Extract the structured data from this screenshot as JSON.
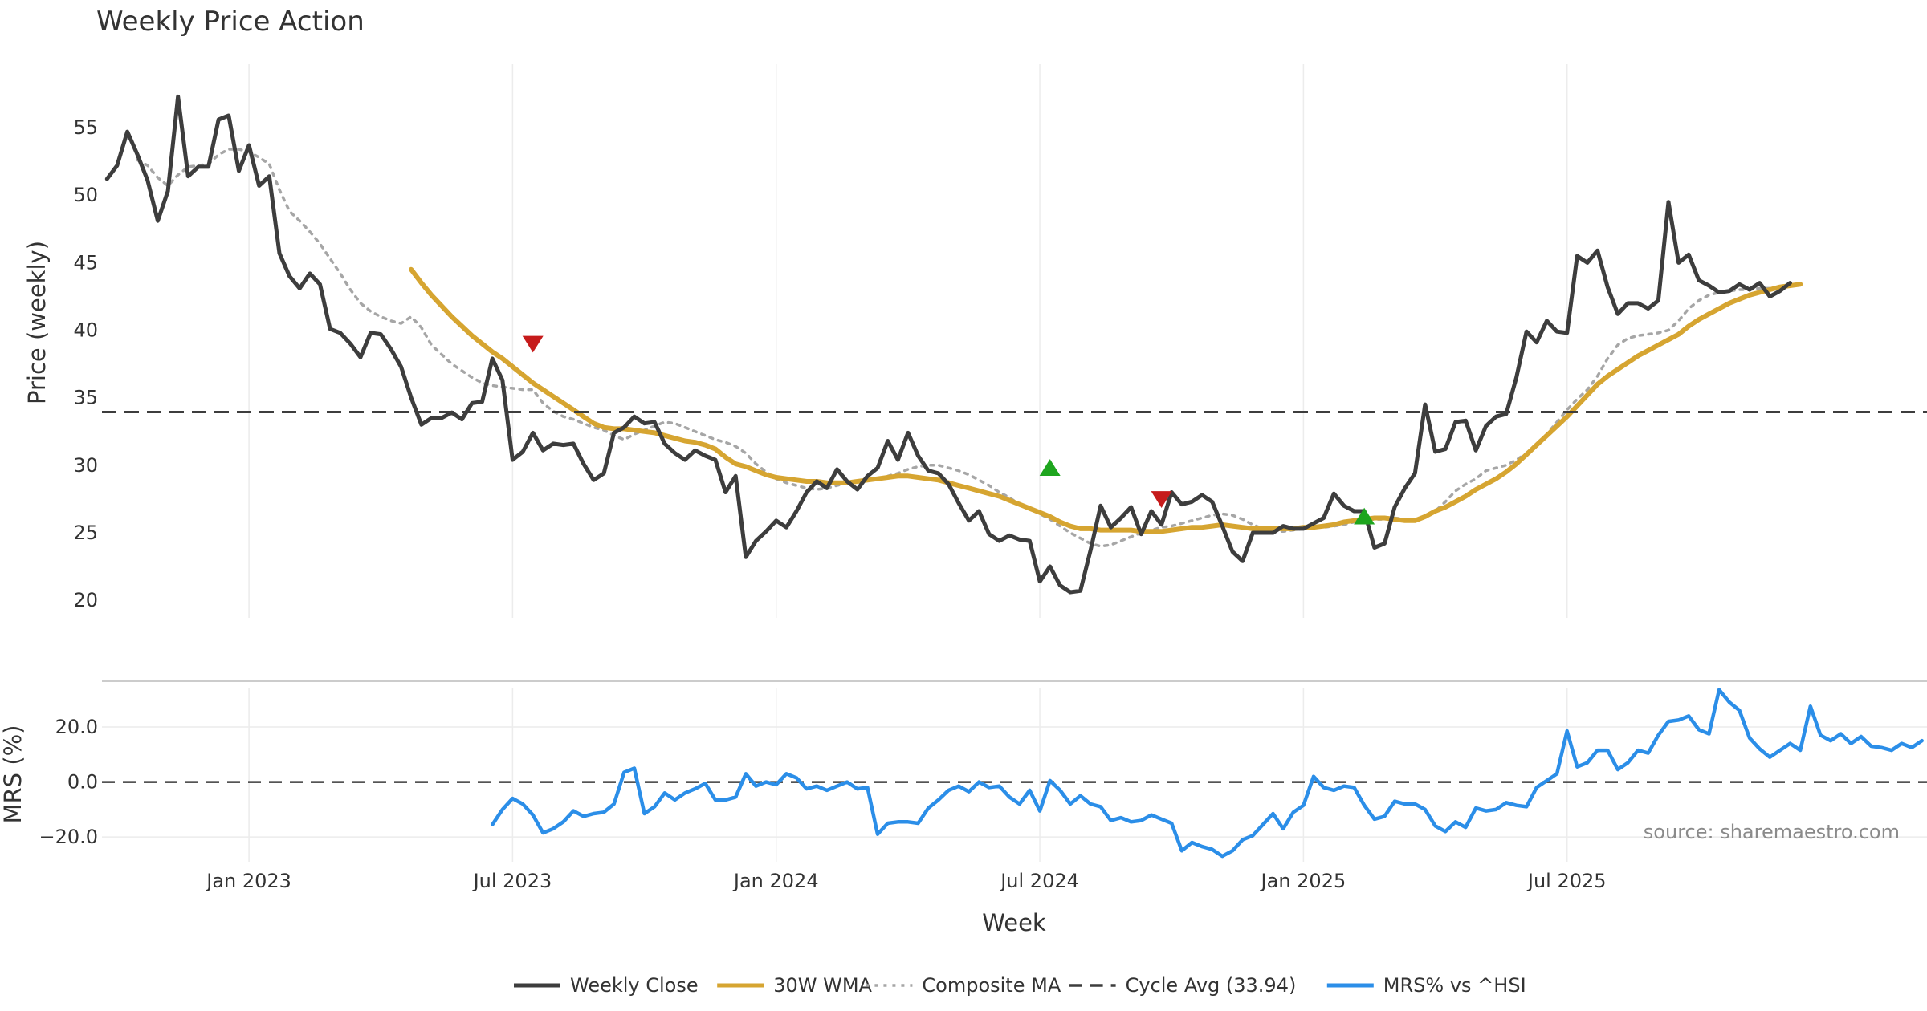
{
  "chart_data": {
    "type": "line",
    "title": "Weekly Price Action",
    "price_panel": {
      "ylabel": "Price (weekly)",
      "ylim": [
        18.7,
        59.7
      ],
      "yticks": [
        20,
        25,
        30,
        35,
        40,
        45,
        50,
        55
      ],
      "x_range_weeks": [
        -14.5,
        165.5
      ],
      "cycle_average": 33.94,
      "series": [
        {
          "name": "Weekly Close",
          "color": "#3d3d3d",
          "start_week": -14,
          "values": [
            51.2,
            52.2,
            54.7,
            53.0,
            51.1,
            48.1,
            50.3,
            57.3,
            51.4,
            52.1,
            52.1,
            55.6,
            55.9,
            51.8,
            53.7,
            50.7,
            51.4,
            45.7,
            44.0,
            43.1,
            44.2,
            43.4,
            40.1,
            39.8,
            39.0,
            38.0,
            39.8,
            39.7,
            38.6,
            37.3,
            35.0,
            33.0,
            33.5,
            33.5,
            33.9,
            33.4,
            34.6,
            34.7,
            37.9,
            36.3,
            30.4,
            31.0,
            32.4,
            31.1,
            31.6,
            31.5,
            31.6,
            30.1,
            28.9,
            29.4,
            32.4,
            32.8,
            33.6,
            33.1,
            33.2,
            31.6,
            30.9,
            30.4,
            31.1,
            30.7,
            30.4,
            28.0,
            29.2,
            23.2,
            24.4,
            25.1,
            25.9,
            25.4,
            26.6,
            28.0,
            28.8,
            28.3,
            29.7,
            28.8,
            28.2,
            29.2,
            29.8,
            31.8,
            30.4,
            32.4,
            30.7,
            29.6,
            29.4,
            28.6,
            27.2,
            25.9,
            26.6,
            24.9,
            24.4,
            24.8,
            24.5,
            24.4,
            21.4,
            22.5,
            21.1,
            20.6,
            20.7,
            23.7,
            27.0,
            25.4,
            26.1,
            26.9,
            24.9,
            26.6,
            25.6,
            28.0,
            27.1,
            27.3,
            27.8,
            27.3,
            25.5,
            23.6,
            22.9,
            25.0,
            25.0,
            25.0,
            25.5,
            25.3,
            25.3,
            25.7,
            26.1,
            27.9,
            27.0,
            26.6,
            26.6,
            23.9,
            24.2,
            26.9,
            28.3,
            29.4,
            34.5,
            31.0,
            31.2,
            33.2,
            33.3,
            31.1,
            32.9,
            33.6,
            33.8,
            36.5,
            39.9,
            39.1,
            40.7,
            39.9,
            39.8,
            45.5,
            45.0,
            45.9,
            43.2,
            41.2,
            42.0,
            42.0,
            41.6,
            42.2,
            49.5,
            45.0,
            45.6,
            43.7,
            43.3,
            42.8,
            42.9,
            43.4,
            43.0,
            43.5,
            42.5,
            42.9,
            43.5
          ]
        },
        {
          "name": "30W WMA",
          "color": "#d6a531",
          "start_week": 16,
          "values": [
            44.5,
            43.5,
            42.6,
            41.8,
            41.0,
            40.3,
            39.6,
            39.0,
            38.4,
            37.9,
            37.3,
            36.7,
            36.1,
            35.6,
            35.1,
            34.6,
            34.1,
            33.6,
            33.1,
            32.8,
            32.7,
            32.7,
            32.6,
            32.5,
            32.4,
            32.2,
            32.0,
            31.8,
            31.7,
            31.5,
            31.2,
            30.6,
            30.1,
            29.9,
            29.6,
            29.3,
            29.1,
            29.0,
            28.9,
            28.8,
            28.8,
            28.7,
            28.7,
            28.7,
            28.8,
            28.9,
            29.0,
            29.1,
            29.2,
            29.2,
            29.1,
            29.0,
            28.9,
            28.7,
            28.5,
            28.3,
            28.1,
            27.9,
            27.7,
            27.4,
            27.1,
            26.8,
            26.5,
            26.2,
            25.8,
            25.5,
            25.3,
            25.3,
            25.2,
            25.2,
            25.2,
            25.2,
            25.1,
            25.1,
            25.1,
            25.2,
            25.3,
            25.4,
            25.4,
            25.5,
            25.6,
            25.5,
            25.4,
            25.3,
            25.3,
            25.3,
            25.3,
            25.3,
            25.4,
            25.4,
            25.5,
            25.6,
            25.8,
            25.9,
            26.0,
            26.1,
            26.1,
            26.0,
            25.9,
            25.9,
            26.2,
            26.6,
            26.9,
            27.3,
            27.7,
            28.2,
            28.6,
            29.0,
            29.5,
            30.1,
            30.8,
            31.5,
            32.2,
            32.9,
            33.6,
            34.4,
            35.2,
            36.0,
            36.6,
            37.1,
            37.6,
            38.1,
            38.5,
            38.9,
            39.3,
            39.7,
            40.3,
            40.8,
            41.2,
            41.6,
            42.0,
            42.3,
            42.6,
            42.8,
            43.0,
            43.2,
            43.3,
            43.4
          ]
        },
        {
          "name": "Composite MA",
          "color": "#a6a6a6",
          "start_week": -11,
          "values": [
            52.6,
            52.2,
            51.3,
            50.7,
            51.5,
            52.1,
            52.2,
            52.3,
            53.0,
            53.4,
            53.4,
            53.2,
            52.8,
            52.3,
            50.4,
            48.8,
            48.1,
            47.3,
            46.4,
            45.3,
            44.2,
            43.0,
            42.0,
            41.4,
            41.0,
            40.7,
            40.5,
            41.0,
            40.2,
            38.9,
            38.2,
            37.5,
            37.0,
            36.5,
            36.1,
            35.9,
            35.8,
            35.7,
            35.6,
            35.6,
            34.6,
            34.0,
            33.6,
            33.4,
            33.1,
            32.8,
            32.6,
            32.2,
            31.9,
            32.3,
            32.6,
            32.9,
            33.2,
            33.1,
            32.8,
            32.5,
            32.2,
            31.9,
            31.7,
            31.4,
            30.9,
            30.1,
            29.5,
            29.0,
            28.7,
            28.5,
            28.3,
            28.2,
            28.3,
            28.5,
            28.7,
            28.8,
            28.9,
            29.0,
            29.2,
            29.4,
            29.7,
            29.9,
            30.0,
            30.0,
            29.8,
            29.6,
            29.3,
            28.9,
            28.5,
            28.0,
            27.6,
            27.1,
            26.8,
            26.4,
            26.0,
            25.5,
            25.0,
            24.6,
            24.2,
            24.0,
            24.1,
            24.4,
            24.7,
            25.0,
            25.2,
            25.4,
            25.5,
            25.7,
            25.9,
            26.1,
            26.3,
            26.4,
            26.3,
            26.0,
            25.6,
            25.3,
            25.1,
            25.1,
            25.2,
            25.3,
            25.4,
            25.4,
            25.5,
            25.6,
            25.8,
            25.9,
            26.0,
            26.0,
            26.1,
            26.0,
            26.0,
            26.2,
            26.6,
            27.3,
            28.1,
            28.6,
            29.0,
            29.6,
            29.8,
            30.0,
            30.4,
            30.9,
            31.6,
            32.3,
            33.2,
            34.1,
            34.9,
            35.6,
            36.6,
            37.9,
            38.9,
            39.4,
            39.6,
            39.7,
            39.8,
            40.0,
            40.7,
            41.6,
            42.2,
            42.6,
            42.8,
            42.9,
            43.0,
            43.0,
            43.1,
            43.1,
            43.2,
            43.2
          ]
        }
      ],
      "markers": [
        {
          "type": "sell",
          "shape": "down-triangle",
          "color": "#c61b1b",
          "week": 28,
          "value": 39.0
        },
        {
          "type": "buy",
          "shape": "up-triangle",
          "color": "#1ea51e",
          "week": 79,
          "value": 29.8
        },
        {
          "type": "sell",
          "shape": "down-triangle",
          "color": "#c61b1b",
          "week": 90,
          "value": 27.5
        },
        {
          "type": "buy",
          "shape": "up-triangle",
          "color": "#1ea51e",
          "week": 110,
          "value": 26.2
        }
      ]
    },
    "mrs_panel": {
      "ylabel": "MRS (%)",
      "ylim": [
        -29,
        34
      ],
      "yticks": [
        20.0,
        0.0,
        -20.0
      ],
      "ytick_labels": [
        "20.0",
        "0.0",
        "−20.0"
      ],
      "series": [
        {
          "name": "MRS% vs ^HSI",
          "color": "#2b8ee8",
          "start_week": 24,
          "values": [
            -15.5,
            -10.0,
            -6.0,
            -8.0,
            -12.0,
            -18.5,
            -17.0,
            -14.5,
            -10.5,
            -12.5,
            -11.5,
            -11.0,
            -8.0,
            3.5,
            5.0,
            -11.5,
            -9.0,
            -4.0,
            -6.5,
            -4.0,
            -2.5,
            -0.5,
            -6.5,
            -6.5,
            -5.5,
            3.0,
            -1.5,
            0.0,
            -1.0,
            3.0,
            1.5,
            -2.5,
            -1.5,
            -3.0,
            -1.5,
            0.0,
            -2.5,
            -2.0,
            -19.0,
            -15.0,
            -14.5,
            -14.5,
            -15.0,
            -9.5,
            -6.5,
            -3.0,
            -1.5,
            -3.5,
            0.0,
            -2.0,
            -1.5,
            -5.5,
            -8.0,
            -3.0,
            -10.5,
            0.5,
            -3.0,
            -8.0,
            -5.0,
            -8.0,
            -9.0,
            -14.0,
            -13.0,
            -14.5,
            -14.0,
            -12.0,
            -13.5,
            -15.0,
            -25.0,
            -22.0,
            -23.5,
            -24.5,
            -27.0,
            -25.0,
            -21.0,
            -19.5,
            -15.5,
            -11.5,
            -17.0,
            -11.0,
            -8.5,
            2.0,
            -2.0,
            -3.0,
            -1.5,
            -2.0,
            -8.5,
            -13.5,
            -12.5,
            -7.0,
            -8.0,
            -8.0,
            -10.0,
            -16.0,
            -18.0,
            -14.5,
            -16.5,
            -9.5,
            -10.5,
            -10.0,
            -7.5,
            -8.5,
            -9.0,
            -2.0,
            0.5,
            3.0,
            18.5,
            5.5,
            7.0,
            11.5,
            11.5,
            4.5,
            7.0,
            11.5,
            10.5,
            17.0,
            22.0,
            22.5,
            24.0,
            19.0,
            17.5,
            33.5,
            29.0,
            26.0,
            16.0,
            12.0,
            9.0,
            11.5,
            14.0,
            11.5,
            27.5,
            17.0,
            15.0,
            17.5,
            14.0,
            16.5,
            13.0,
            12.5,
            11.5,
            14.0,
            12.5,
            15.0
          ]
        }
      ]
    },
    "x_axis": {
      "label": "Week",
      "ticks": [
        {
          "label": "Jan 2023",
          "week": 0
        },
        {
          "label": "Jul 2023",
          "week": 26
        },
        {
          "label": "Jan 2024",
          "week": 52
        },
        {
          "label": "Jul 2024",
          "week": 78
        },
        {
          "label": "Jan 2025",
          "week": 104
        },
        {
          "label": "Jul 2025",
          "week": 130
        }
      ]
    },
    "legend": {
      "placement": "bottom-center",
      "items": [
        {
          "label": "Weekly Close",
          "color": "#3d3d3d",
          "style": "solid"
        },
        {
          "label": "30W WMA",
          "color": "#d6a531",
          "style": "solid"
        },
        {
          "label": "Composite MA",
          "color": "#a6a6a6",
          "style": "dotted"
        },
        {
          "label": "Cycle Avg (33.94)",
          "color": "#3d3d3d",
          "style": "dashed"
        },
        {
          "label": "MRS% vs ^HSI",
          "color": "#2b8ee8",
          "style": "solid"
        }
      ]
    },
    "source": "source: sharemaestro.com"
  }
}
